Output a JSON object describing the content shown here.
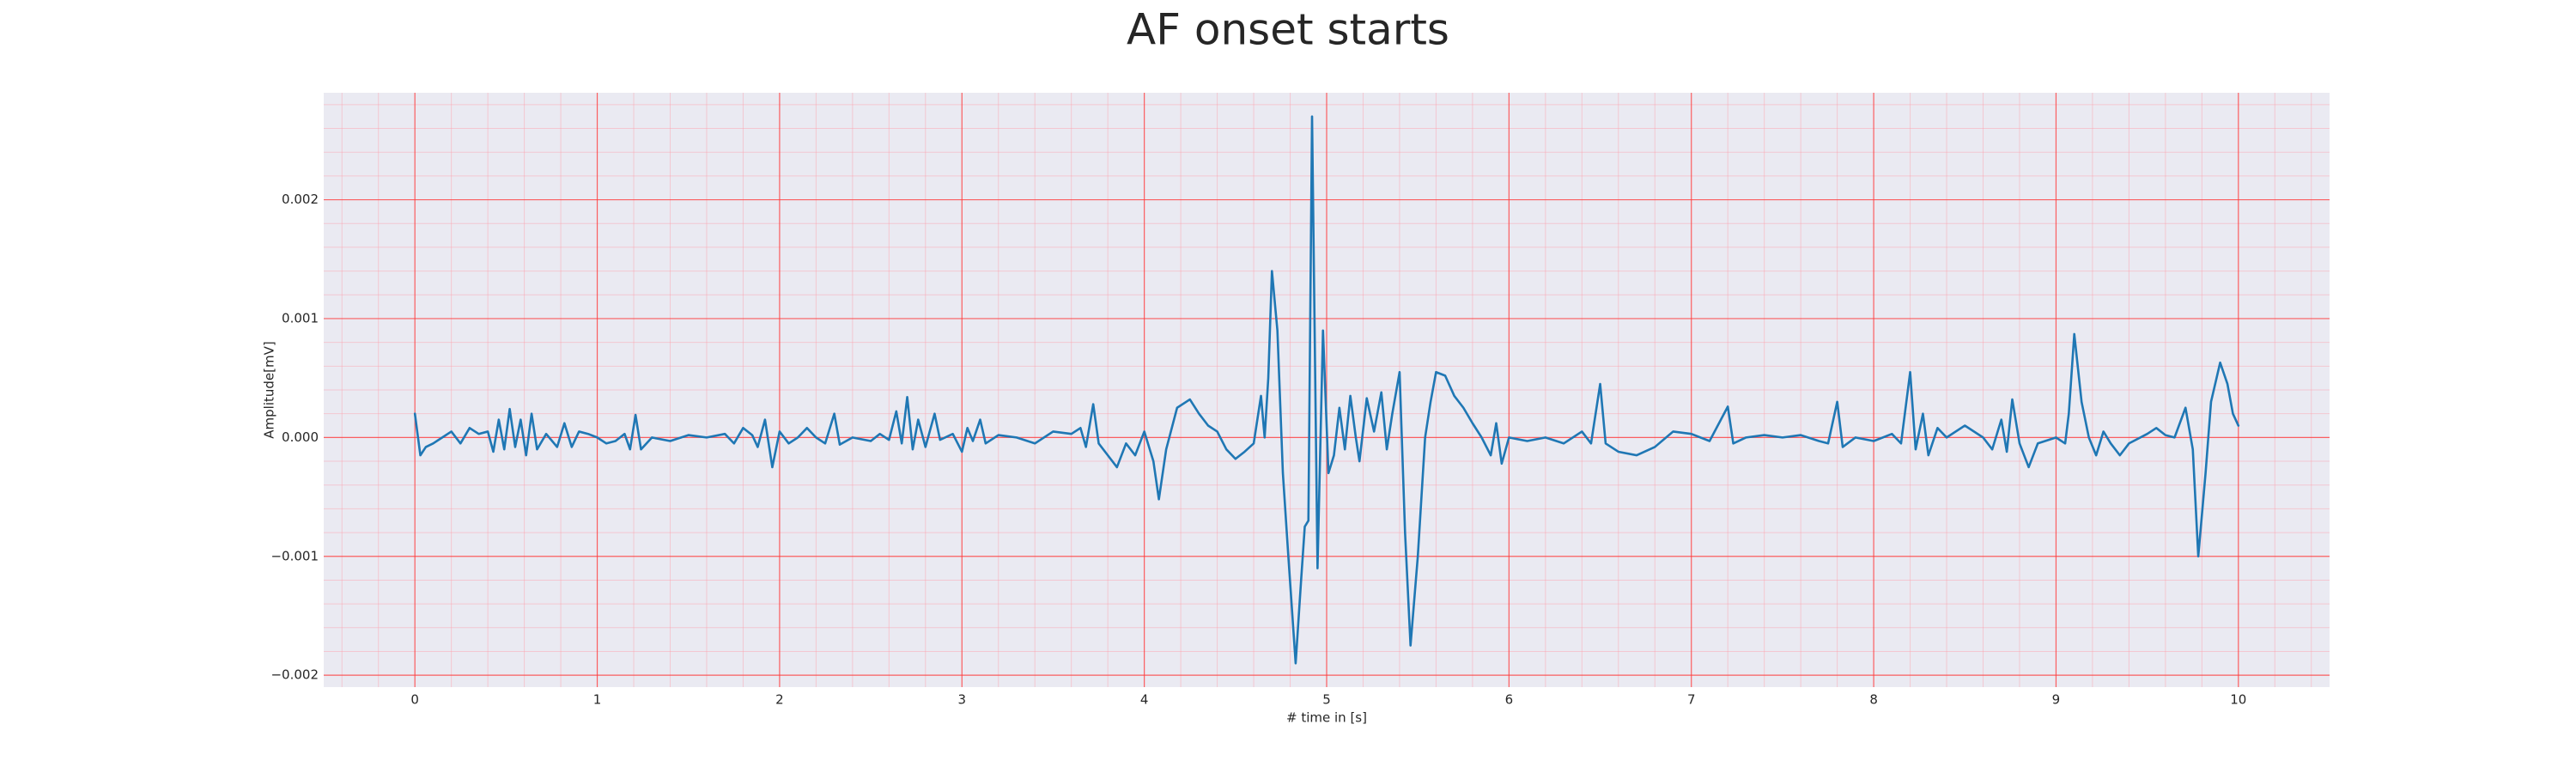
{
  "chart_data": {
    "type": "line",
    "title": "AF onset starts",
    "xlabel": "# time in [s]",
    "ylabel": "Amplitude[mV]",
    "color": "#1f77b4",
    "grid": true,
    "minor_grid": true,
    "xlim": [
      -0.5,
      10.5
    ],
    "ylim": [
      -0.0021,
      0.0029
    ],
    "xticks": [
      0,
      1,
      2,
      3,
      4,
      5,
      6,
      7,
      8,
      9,
      10
    ],
    "yticks": [
      {
        "value": -0.002,
        "label": "−0.002"
      },
      {
        "value": -0.001,
        "label": "−0.001"
      },
      {
        "value": 0,
        "label": "0.000"
      },
      0.001,
      0.002
    ],
    "x": [
      0,
      0.03,
      0.06,
      0.1,
      0.15,
      0.2,
      0.25,
      0.3,
      0.35,
      0.4,
      0.43,
      0.46,
      0.49,
      0.52,
      0.55,
      0.58,
      0.61,
      0.64,
      0.67,
      0.72,
      0.78,
      0.82,
      0.86,
      0.9,
      0.95,
      1.0,
      1.05,
      1.1,
      1.15,
      1.18,
      1.21,
      1.24,
      1.3,
      1.4,
      1.5,
      1.6,
      1.7,
      1.75,
      1.8,
      1.85,
      1.88,
      1.92,
      1.96,
      2.0,
      2.05,
      2.1,
      2.15,
      2.2,
      2.25,
      2.3,
      2.33,
      2.4,
      2.5,
      2.55,
      2.6,
      2.64,
      2.67,
      2.7,
      2.73,
      2.76,
      2.8,
      2.85,
      2.88,
      2.95,
      3.0,
      3.03,
      3.06,
      3.1,
      3.13,
      3.2,
      3.3,
      3.4,
      3.5,
      3.6,
      3.65,
      3.68,
      3.72,
      3.75,
      3.8,
      3.85,
      3.9,
      3.95,
      4.0,
      4.05,
      4.08,
      4.12,
      4.18,
      4.25,
      4.3,
      4.35,
      4.4,
      4.45,
      4.5,
      4.55,
      4.6,
      4.64,
      4.66,
      4.68,
      4.7,
      4.73,
      4.76,
      4.79,
      4.83,
      4.86,
      4.88,
      4.9,
      4.92,
      4.95,
      4.98,
      5.01,
      5.04,
      5.07,
      5.1,
      5.13,
      5.16,
      5.18,
      5.22,
      5.26,
      5.3,
      5.33,
      5.36,
      5.4,
      5.43,
      5.46,
      5.5,
      5.54,
      5.57,
      5.6,
      5.65,
      5.7,
      5.75,
      5.8,
      5.85,
      5.9,
      5.93,
      5.96,
      6.0,
      6.1,
      6.2,
      6.3,
      6.4,
      6.45,
      6.5,
      6.53,
      6.6,
      6.7,
      6.8,
      6.9,
      7.0,
      7.1,
      7.2,
      7.23,
      7.3,
      7.4,
      7.5,
      7.6,
      7.7,
      7.75,
      7.8,
      7.83,
      7.9,
      8.0,
      8.1,
      8.15,
      8.2,
      8.23,
      8.27,
      8.3,
      8.35,
      8.4,
      8.5,
      8.6,
      8.65,
      8.7,
      8.73,
      8.76,
      8.8,
      8.85,
      8.9,
      9.0,
      9.05,
      9.07,
      9.1,
      9.14,
      9.18,
      9.22,
      9.26,
      9.3,
      9.35,
      9.4,
      9.5,
      9.55,
      9.6,
      9.65,
      9.71,
      9.75,
      9.78,
      9.82,
      9.85,
      9.9,
      9.94,
      9.97,
      10.0
    ],
    "values": [
      0.0002,
      -0.00015,
      -8e-05,
      -5e-05,
      0,
      5e-05,
      -5e-05,
      8e-05,
      3e-05,
      5e-05,
      -0.00012,
      0.00015,
      -0.0001,
      0.00024,
      -8e-05,
      0.00015,
      -0.00015,
      0.0002,
      -0.0001,
      3e-05,
      -8e-05,
      0.00012,
      -8e-05,
      5e-05,
      3e-05,
      0,
      -5e-05,
      -3e-05,
      3e-05,
      -0.0001,
      0.00019,
      -0.0001,
      0,
      -3e-05,
      2e-05,
      0,
      3e-05,
      -5e-05,
      8e-05,
      2e-05,
      -8e-05,
      0.00015,
      -0.00025,
      5e-05,
      -5e-05,
      0,
      8e-05,
      0,
      -5e-05,
      0.0002,
      -6e-05,
      0,
      -3e-05,
      3e-05,
      -2e-05,
      0.00022,
      -5e-05,
      0.00034,
      -0.0001,
      0.00015,
      -8e-05,
      0.0002,
      -2e-05,
      3e-05,
      -0.00012,
      8e-05,
      -3e-05,
      0.00015,
      -5e-05,
      2e-05,
      0,
      -5e-05,
      5e-05,
      3e-05,
      8e-05,
      -8e-05,
      0.00028,
      -5e-05,
      -0.00015,
      -0.00025,
      -5e-05,
      -0.00015,
      5e-05,
      -0.0002,
      -0.00052,
      -0.0001,
      0.00025,
      0.00032,
      0.0002,
      0.0001,
      5e-05,
      -0.0001,
      -0.00018,
      -0.00012,
      -5e-05,
      0.00035,
      0,
      0.0005,
      0.0014,
      0.0009,
      -0.0003,
      -0.001,
      -0.0019,
      -0.0012,
      -0.00075,
      -0.0007,
      0.0027,
      -0.0011,
      0.0009,
      -0.0003,
      -0.00015,
      0.00025,
      -0.0001,
      0.00035,
      0,
      -0.0002,
      0.00033,
      5e-05,
      0.00038,
      -0.0001,
      0.0002,
      0.00055,
      -0.0008,
      -0.00175,
      -0.001,
      0,
      0.0003,
      0.00055,
      0.00052,
      0.00035,
      0.00025,
      0.00012,
      0,
      -0.00015,
      0.00012,
      -0.00022,
      0,
      -3e-05,
      0,
      -5e-05,
      5e-05,
      -5e-05,
      0.00045,
      -5e-05,
      -0.00012,
      -0.00015,
      -8e-05,
      5e-05,
      3e-05,
      -3e-05,
      0.00026,
      -5e-05,
      0,
      2e-05,
      0,
      2e-05,
      -3e-05,
      -5e-05,
      0.0003,
      -8e-05,
      0,
      -3e-05,
      3e-05,
      -5e-05,
      0.00055,
      -0.0001,
      0.0002,
      -0.00015,
      8e-05,
      0,
      0.0001,
      0,
      -0.0001,
      0.00015,
      -0.00012,
      0.00032,
      -5e-05,
      -0.00025,
      -5e-05,
      0,
      -5e-05,
      0.0002,
      0.00087,
      0.0003,
      0,
      -0.00015,
      5e-05,
      -5e-05,
      -0.00015,
      -5e-05,
      3e-05,
      8e-05,
      2e-05,
      0,
      0.00025,
      -0.0001,
      -0.001,
      -0.0003,
      0.0003,
      0.00063,
      0.00045,
      0.0002,
      0.0001
    ]
  }
}
